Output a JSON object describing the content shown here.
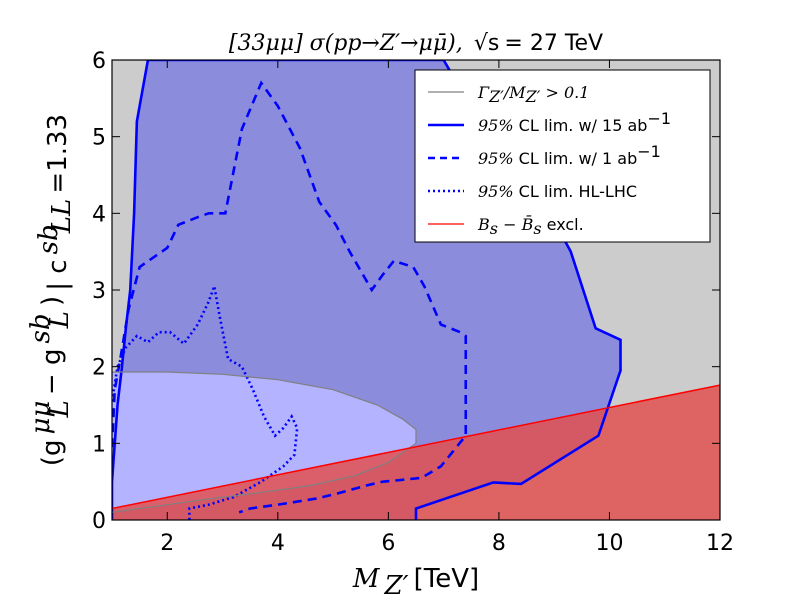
{
  "chart_data": {
    "type": "area",
    "title_math": "[33μμ] σ(pp→Z′→μμ̄),",
    "title_sqrt": "√s",
    "title_value": " = 27 TeV",
    "xlabel_math": "M",
    "xlabel_sub": "Z′",
    "xlabel_unit": " [TeV]",
    "ylabel_main": "(g",
    "ylabel_sup1": "μμ",
    "ylabel_sub1": "L",
    "ylabel_mid": " − g",
    "ylabel_sup2": "sb",
    "ylabel_sub2": "L",
    "ylabel_close": ")",
    "ylabel_cond": "| c",
    "ylabel_cond_sup": "sb",
    "ylabel_cond_sub": "LL",
    "ylabel_cond_val": " =1.33",
    "xlim": [
      1,
      12
    ],
    "ylim": [
      0,
      6
    ],
    "xticks": [
      2,
      4,
      6,
      8,
      10,
      12
    ],
    "yticks": [
      0,
      1,
      2,
      3,
      4,
      5,
      6
    ],
    "xtick_labels": [
      "2",
      "4",
      "6",
      "8",
      "10",
      "12"
    ],
    "ytick_labels": [
      "0",
      "1",
      "2",
      "3",
      "4",
      "5",
      "6"
    ],
    "background_color": "#cccccc",
    "legend_position": "upper-right",
    "legend": [
      {
        "key": "width",
        "math": "Γ",
        "sub": "Z′",
        "mid": "/M",
        "sub2": "Z′",
        "tail": " > 0.1",
        "color": "#808080",
        "style": "solid"
      },
      {
        "key": "lim15",
        "prefix": "95%",
        "text": " CL lim. w/ 15 ab",
        "sup": "−1",
        "color": "#0000ff",
        "style": "solid"
      },
      {
        "key": "lim1",
        "prefix": "95%",
        "text": " CL lim. w/ 1 ab",
        "sup": "−1",
        "color": "#0000ff",
        "style": "dashed"
      },
      {
        "key": "hllhc",
        "prefix": "95%",
        "text": " CL lim. HL-LHC",
        "color": "#0000ff",
        "style": "dotted"
      },
      {
        "key": "bs",
        "math": "B",
        "sub": "s",
        "mid": " − B̄",
        "sub2": "s",
        "tail": " excl.",
        "color": "#ff0000",
        "style": "solid"
      }
    ],
    "regions": [
      {
        "name": "95% CL lim. w/ 15 ab⁻¹",
        "fill": "#8c8cdc",
        "stroke": "#0000ff",
        "style": "solid",
        "points": [
          [
            1.0,
            0.0
          ],
          [
            1.0,
            0.5
          ],
          [
            1.05,
            1.0
          ],
          [
            1.1,
            1.5
          ],
          [
            1.18,
            2.0
          ],
          [
            1.25,
            2.5
          ],
          [
            1.33,
            3.0
          ],
          [
            1.4,
            4.0
          ],
          [
            1.45,
            5.2
          ],
          [
            1.65,
            6.0
          ],
          [
            7.0,
            6.0
          ],
          [
            7.4,
            5.5
          ],
          [
            8.0,
            5.0
          ],
          [
            8.7,
            4.3
          ],
          [
            9.3,
            3.5
          ],
          [
            9.75,
            2.5
          ],
          [
            10.2,
            2.35
          ],
          [
            10.2,
            1.95
          ],
          [
            9.8,
            1.1
          ],
          [
            8.4,
            0.47
          ],
          [
            7.9,
            0.49
          ],
          [
            6.5,
            0.15
          ],
          [
            6.5,
            0.0
          ]
        ]
      },
      {
        "name": "95% CL lim. w/ 1 ab⁻¹",
        "fill": "#0000ff",
        "fill_opacity": 0.0,
        "stroke": "#0000ff",
        "style": "dashed",
        "points": [
          [
            1.0,
            0.95
          ],
          [
            1.05,
            1.7
          ],
          [
            1.15,
            2.1
          ],
          [
            1.3,
            2.75
          ],
          [
            1.5,
            3.3
          ],
          [
            2.0,
            3.55
          ],
          [
            2.2,
            3.85
          ],
          [
            2.55,
            3.95
          ],
          [
            2.75,
            4.0
          ],
          [
            3.05,
            4.0
          ],
          [
            3.35,
            5.1
          ],
          [
            3.7,
            5.7
          ],
          [
            4.0,
            5.4
          ],
          [
            4.4,
            4.85
          ],
          [
            4.75,
            4.15
          ],
          [
            5.05,
            3.85
          ],
          [
            5.3,
            3.5
          ],
          [
            5.7,
            3.0
          ],
          [
            5.9,
            3.2
          ],
          [
            6.1,
            3.38
          ],
          [
            6.45,
            3.3
          ],
          [
            6.65,
            3.05
          ],
          [
            6.95,
            2.55
          ],
          [
            7.3,
            2.45
          ],
          [
            7.4,
            2.4
          ],
          [
            7.4,
            1.1
          ],
          [
            6.95,
            0.7
          ],
          [
            6.6,
            0.55
          ],
          [
            6.2,
            0.52
          ],
          [
            5.9,
            0.5
          ],
          [
            5.6,
            0.45
          ],
          [
            5.1,
            0.35
          ],
          [
            4.7,
            0.28
          ],
          [
            4.0,
            0.2
          ],
          [
            3.5,
            0.15
          ],
          [
            3.3,
            0.1
          ]
        ]
      },
      {
        "name": "95% CL lim. HL-LHC",
        "fill": "#0000ff",
        "fill_opacity": 0.0,
        "stroke": "#0000ff",
        "style": "dotted",
        "points": [
          [
            1.0,
            1.55
          ],
          [
            1.1,
            2.0
          ],
          [
            1.25,
            2.25
          ],
          [
            1.45,
            2.4
          ],
          [
            1.65,
            2.32
          ],
          [
            1.85,
            2.45
          ],
          [
            2.05,
            2.45
          ],
          [
            2.3,
            2.3
          ],
          [
            2.55,
            2.55
          ],
          [
            2.75,
            2.85
          ],
          [
            2.85,
            3.05
          ],
          [
            2.95,
            2.65
          ],
          [
            3.1,
            2.1
          ],
          [
            3.35,
            2.0
          ],
          [
            3.55,
            1.7
          ],
          [
            3.75,
            1.35
          ],
          [
            3.95,
            1.1
          ],
          [
            4.1,
            1.2
          ],
          [
            4.25,
            1.35
          ],
          [
            4.35,
            1.2
          ],
          [
            4.3,
            0.85
          ],
          [
            4.1,
            0.7
          ],
          [
            3.7,
            0.5
          ],
          [
            3.2,
            0.3
          ],
          [
            2.75,
            0.2
          ],
          [
            2.4,
            0.15
          ],
          [
            2.4,
            0.0
          ]
        ]
      },
      {
        "name": "Γ/M > 0.1",
        "fill": "#b3b3ff",
        "stroke": "#808080",
        "style": "solid",
        "points": [
          [
            1.0,
            1.93
          ],
          [
            2.0,
            1.93
          ],
          [
            3.0,
            1.9
          ],
          [
            4.0,
            1.83
          ],
          [
            5.0,
            1.7
          ],
          [
            5.8,
            1.5
          ],
          [
            6.25,
            1.32
          ],
          [
            6.5,
            1.18
          ],
          [
            6.5,
            1.0
          ],
          [
            6.0,
            0.75
          ],
          [
            5.4,
            0.58
          ],
          [
            4.6,
            0.45
          ],
          [
            3.6,
            0.35
          ],
          [
            2.8,
            0.28
          ],
          [
            2.0,
            0.2
          ],
          [
            1.0,
            0.1
          ]
        ]
      }
    ],
    "bs_exclusion": {
      "name": "Bs − B̄s excl.",
      "fill": "#e05050",
      "fill_opacity": 0.85,
      "stroke": "#ff0000",
      "line": [
        [
          1.0,
          0.15
        ],
        [
          12.0,
          1.76
        ]
      ]
    },
    "grid": false
  }
}
